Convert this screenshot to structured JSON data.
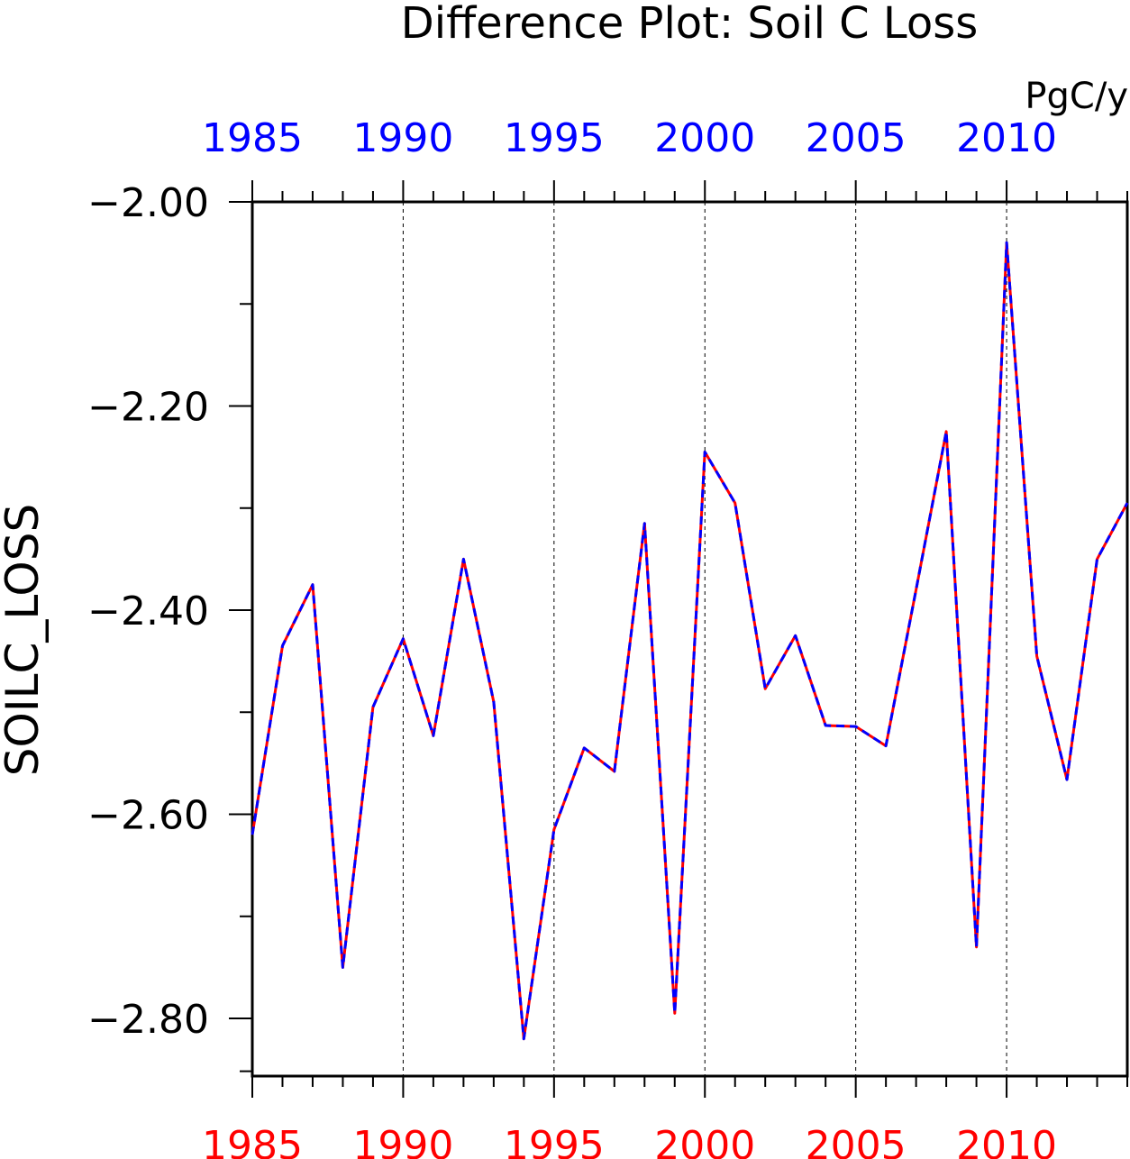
{
  "chart_data": {
    "type": "line",
    "title": "Difference Plot: Soil C Loss",
    "units": "PgC/y",
    "ylabel": "SOILC_LOSS",
    "xlim": [
      1985,
      2014
    ],
    "ylim": [
      -2.86,
      -2.0
    ],
    "x_ticks": [
      1985,
      1990,
      1995,
      2000,
      2005,
      2010
    ],
    "x_tick_labels": [
      "1985",
      "1990",
      "1995",
      "2000",
      "2005",
      "2010"
    ],
    "y_ticks": [
      -2.0,
      -2.2,
      -2.4,
      -2.6,
      -2.8
    ],
    "y_tick_labels": [
      "−2.00",
      "−2.20",
      "−2.40",
      "−2.60",
      "−2.80"
    ],
    "gridlines_x": [
      1990,
      1995,
      2000,
      2005,
      2010
    ],
    "colors": {
      "top_axis": "#0000ff",
      "bottom_axis": "#ff0000",
      "series_red": "#ff0000",
      "series_blue": "#0000ff"
    },
    "x": [
      1985,
      1986,
      1987,
      1988,
      1989,
      1990,
      1991,
      1992,
      1993,
      1994,
      1995,
      1996,
      1997,
      1998,
      1999,
      2000,
      2001,
      2002,
      2003,
      2004,
      2005,
      2006,
      2007,
      2008,
      2009,
      2010,
      2011,
      2012,
      2013,
      2014
    ],
    "series": [
      {
        "color": "#ff0000",
        "style": "solid",
        "values": [
          -2.62,
          -2.435,
          -2.375,
          -2.75,
          -2.495,
          -2.428,
          -2.523,
          -2.35,
          -2.49,
          -2.82,
          -2.615,
          -2.535,
          -2.558,
          -2.315,
          -2.795,
          -2.245,
          -2.295,
          -2.477,
          -2.425,
          -2.513,
          -2.514,
          -2.533,
          -2.38,
          -2.225,
          -2.73,
          -2.04,
          -2.445,
          -2.566,
          -2.35,
          -2.295
        ]
      },
      {
        "color": "#0000ff",
        "style": "dashed",
        "values": [
          -2.62,
          -2.435,
          -2.375,
          -2.75,
          -2.495,
          -2.428,
          -2.523,
          -2.35,
          -2.49,
          -2.82,
          -2.615,
          -2.535,
          -2.558,
          -2.315,
          -2.795,
          -2.245,
          -2.295,
          -2.477,
          -2.425,
          -2.513,
          -2.514,
          -2.533,
          -2.38,
          -2.225,
          -2.73,
          -2.04,
          -2.445,
          -2.566,
          -2.35,
          -2.295
        ]
      }
    ]
  }
}
